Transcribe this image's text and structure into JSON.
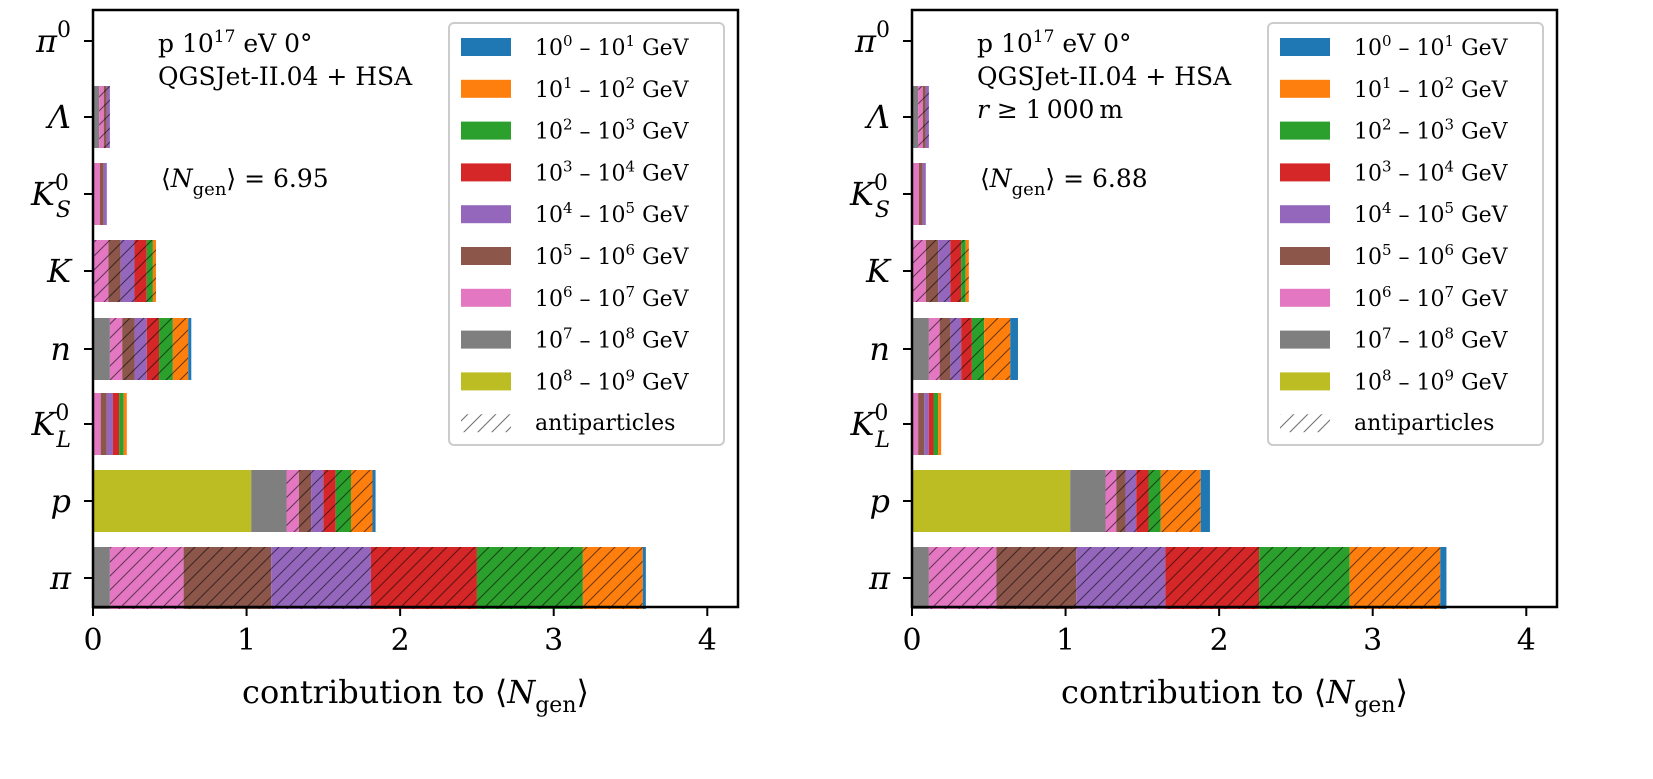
{
  "chart_data": [
    {
      "type": "bar",
      "orientation": "horizontal",
      "stacked": true,
      "xlabel": "contribution to ⟨Ngen⟩",
      "xlabel_parts": {
        "prefix": "contribution to ⟨",
        "sym": "N",
        "sub": "gen",
        "suffix": "⟩"
      },
      "xlim": [
        0,
        4.2
      ],
      "xticks": [
        0,
        1,
        2,
        3,
        4
      ],
      "grid": false,
      "legend": "top-right",
      "annotations": [
        {
          "kind": "plain",
          "text": "p 10^17 eV 0°",
          "parts": [
            "p 10",
            "17",
            " eV 0°"
          ]
        },
        {
          "kind": "text",
          "text": "QGSJet-II.04 + HSA"
        },
        {
          "kind": "mean",
          "text": "⟨Ngen⟩ = 6.95",
          "value": "6.95"
        }
      ],
      "categories": [
        "π0",
        "Λ",
        "K0S",
        "K",
        "n",
        "K0L",
        "p",
        "π"
      ],
      "bins": [
        {
          "label": "10^0 – 10^1 GeV",
          "exps": [
            "0",
            "1"
          ],
          "color": "#1f77b4"
        },
        {
          "label": "10^1 – 10^2 GeV",
          "exps": [
            "1",
            "2"
          ],
          "color": "#ff7f0e"
        },
        {
          "label": "10^2 – 10^3 GeV",
          "exps": [
            "2",
            "3"
          ],
          "color": "#2ca02c"
        },
        {
          "label": "10^3 – 10^4 GeV",
          "exps": [
            "3",
            "4"
          ],
          "color": "#d62728"
        },
        {
          "label": "10^4 – 10^5 GeV",
          "exps": [
            "4",
            "5"
          ],
          "color": "#9467bd"
        },
        {
          "label": "10^5 – 10^6 GeV",
          "exps": [
            "5",
            "6"
          ],
          "color": "#8c564b"
        },
        {
          "label": "10^6 – 10^7 GeV",
          "exps": [
            "6",
            "7"
          ],
          "color": "#e377c2"
        },
        {
          "label": "10^7 – 10^8 GeV",
          "exps": [
            "7",
            "8"
          ],
          "color": "#7f7f7f"
        },
        {
          "label": "10^8 – 10^9 GeV",
          "exps": [
            "8",
            "9"
          ],
          "color": "#bcbd22"
        }
      ],
      "antiparticle_label": "antiparticles",
      "bars": {
        "π0": [],
        "Λ": [
          {
            "bin": 7,
            "value": 0.04,
            "anti": false
          },
          {
            "bin": 6,
            "value": 0.03,
            "anti": true
          },
          {
            "bin": 5,
            "value": 0.02,
            "anti": true
          },
          {
            "bin": 4,
            "value": 0.02,
            "anti": true
          }
        ],
        "K0S": [
          {
            "bin": 6,
            "value": 0.045,
            "anti": false
          },
          {
            "bin": 5,
            "value": 0.025,
            "anti": false
          },
          {
            "bin": 4,
            "value": 0.02,
            "anti": false
          }
        ],
        "K": [
          {
            "bin": 6,
            "value": 0.1,
            "anti": true
          },
          {
            "bin": 5,
            "value": 0.08,
            "anti": true
          },
          {
            "bin": 4,
            "value": 0.09,
            "anti": true
          },
          {
            "bin": 3,
            "value": 0.08,
            "anti": true
          },
          {
            "bin": 2,
            "value": 0.04,
            "anti": true
          },
          {
            "bin": 1,
            "value": 0.02,
            "anti": true
          }
        ],
        "n": [
          {
            "bin": 7,
            "value": 0.11,
            "anti": false
          },
          {
            "bin": 6,
            "value": 0.08,
            "anti": true
          },
          {
            "bin": 5,
            "value": 0.08,
            "anti": true
          },
          {
            "bin": 4,
            "value": 0.08,
            "anti": true
          },
          {
            "bin": 3,
            "value": 0.08,
            "anti": true
          },
          {
            "bin": 2,
            "value": 0.09,
            "anti": true
          },
          {
            "bin": 1,
            "value": 0.1,
            "anti": true
          },
          {
            "bin": 0,
            "value": 0.02,
            "anti": false
          }
        ],
        "K0L": [
          {
            "bin": 6,
            "value": 0.05,
            "anti": false
          },
          {
            "bin": 5,
            "value": 0.04,
            "anti": false
          },
          {
            "bin": 4,
            "value": 0.04,
            "anti": false
          },
          {
            "bin": 3,
            "value": 0.04,
            "anti": false
          },
          {
            "bin": 2,
            "value": 0.03,
            "anti": false
          },
          {
            "bin": 1,
            "value": 0.02,
            "anti": false
          }
        ],
        "p": [
          {
            "bin": 8,
            "value": 1.03,
            "anti": false
          },
          {
            "bin": 7,
            "value": 0.23,
            "anti": false
          },
          {
            "bin": 6,
            "value": 0.08,
            "anti": true
          },
          {
            "bin": 5,
            "value": 0.08,
            "anti": true
          },
          {
            "bin": 4,
            "value": 0.08,
            "anti": true
          },
          {
            "bin": 3,
            "value": 0.08,
            "anti": true
          },
          {
            "bin": 2,
            "value": 0.1,
            "anti": true
          },
          {
            "bin": 1,
            "value": 0.14,
            "anti": true
          },
          {
            "bin": 0,
            "value": 0.02,
            "anti": false
          }
        ],
        "π": [
          {
            "bin": 7,
            "value": 0.11,
            "anti": false
          },
          {
            "bin": 6,
            "value": 0.48,
            "anti": true
          },
          {
            "bin": 5,
            "value": 0.57,
            "anti": true
          },
          {
            "bin": 4,
            "value": 0.65,
            "anti": true
          },
          {
            "bin": 3,
            "value": 0.69,
            "anti": true
          },
          {
            "bin": 2,
            "value": 0.69,
            "anti": true
          },
          {
            "bin": 1,
            "value": 0.39,
            "anti": true
          },
          {
            "bin": 0,
            "value": 0.02,
            "anti": false
          }
        ]
      }
    },
    {
      "type": "bar",
      "orientation": "horizontal",
      "stacked": true,
      "xlabel": "contribution to ⟨Ngen⟩",
      "xlabel_parts": {
        "prefix": "contribution to ⟨",
        "sym": "N",
        "sub": "gen",
        "suffix": "⟩"
      },
      "xlim": [
        0,
        4.2
      ],
      "xticks": [
        0,
        1,
        2,
        3,
        4
      ],
      "grid": false,
      "legend": "top-right",
      "annotations": [
        {
          "kind": "plain",
          "text": "p 10^17 eV 0°",
          "parts": [
            "p 10",
            "17",
            " eV 0°"
          ]
        },
        {
          "kind": "text",
          "text": "QGSJet-II.04 + HSA"
        },
        {
          "kind": "radius",
          "text": "r ≥ 1 000 m",
          "parts": [
            "r",
            " ≥ 1 000 m"
          ]
        },
        {
          "kind": "mean",
          "text": "⟨Ngen⟩ = 6.88",
          "value": "6.88"
        }
      ],
      "categories": [
        "π0",
        "Λ",
        "K0S",
        "K",
        "n",
        "K0L",
        "p",
        "π"
      ],
      "bins": [
        {
          "label": "10^0 – 10^1 GeV",
          "exps": [
            "0",
            "1"
          ],
          "color": "#1f77b4"
        },
        {
          "label": "10^1 – 10^2 GeV",
          "exps": [
            "1",
            "2"
          ],
          "color": "#ff7f0e"
        },
        {
          "label": "10^2 – 10^3 GeV",
          "exps": [
            "2",
            "3"
          ],
          "color": "#2ca02c"
        },
        {
          "label": "10^3 – 10^4 GeV",
          "exps": [
            "3",
            "4"
          ],
          "color": "#d62728"
        },
        {
          "label": "10^4 – 10^5 GeV",
          "exps": [
            "4",
            "5"
          ],
          "color": "#9467bd"
        },
        {
          "label": "10^5 – 10^6 GeV",
          "exps": [
            "5",
            "6"
          ],
          "color": "#8c564b"
        },
        {
          "label": "10^6 – 10^7 GeV",
          "exps": [
            "6",
            "7"
          ],
          "color": "#e377c2"
        },
        {
          "label": "10^7 – 10^8 GeV",
          "exps": [
            "7",
            "8"
          ],
          "color": "#7f7f7f"
        },
        {
          "label": "10^8 – 10^9 GeV",
          "exps": [
            "8",
            "9"
          ],
          "color": "#bcbd22"
        }
      ],
      "antiparticle_label": "antiparticles",
      "bars": {
        "π0": [],
        "Λ": [
          {
            "bin": 7,
            "value": 0.04,
            "anti": false
          },
          {
            "bin": 6,
            "value": 0.03,
            "anti": true
          },
          {
            "bin": 5,
            "value": 0.02,
            "anti": true
          },
          {
            "bin": 4,
            "value": 0.02,
            "anti": true
          }
        ],
        "K0S": [
          {
            "bin": 6,
            "value": 0.045,
            "anti": false
          },
          {
            "bin": 5,
            "value": 0.025,
            "anti": false
          },
          {
            "bin": 4,
            "value": 0.02,
            "anti": false
          }
        ],
        "K": [
          {
            "bin": 6,
            "value": 0.09,
            "anti": true
          },
          {
            "bin": 5,
            "value": 0.08,
            "anti": true
          },
          {
            "bin": 4,
            "value": 0.08,
            "anti": true
          },
          {
            "bin": 3,
            "value": 0.07,
            "anti": true
          },
          {
            "bin": 2,
            "value": 0.03,
            "anti": true
          },
          {
            "bin": 1,
            "value": 0.02,
            "anti": true
          }
        ],
        "n": [
          {
            "bin": 7,
            "value": 0.11,
            "anti": false
          },
          {
            "bin": 6,
            "value": 0.07,
            "anti": true
          },
          {
            "bin": 5,
            "value": 0.07,
            "anti": true
          },
          {
            "bin": 4,
            "value": 0.07,
            "anti": true
          },
          {
            "bin": 3,
            "value": 0.07,
            "anti": true
          },
          {
            "bin": 2,
            "value": 0.08,
            "anti": true
          },
          {
            "bin": 1,
            "value": 0.17,
            "anti": true
          },
          {
            "bin": 0,
            "value": 0.05,
            "anti": false
          }
        ],
        "K0L": [
          {
            "bin": 6,
            "value": 0.04,
            "anti": false
          },
          {
            "bin": 5,
            "value": 0.04,
            "anti": false
          },
          {
            "bin": 4,
            "value": 0.03,
            "anti": false
          },
          {
            "bin": 3,
            "value": 0.03,
            "anti": false
          },
          {
            "bin": 2,
            "value": 0.03,
            "anti": false
          },
          {
            "bin": 1,
            "value": 0.02,
            "anti": false
          }
        ],
        "p": [
          {
            "bin": 8,
            "value": 1.03,
            "anti": false
          },
          {
            "bin": 7,
            "value": 0.23,
            "anti": false
          },
          {
            "bin": 6,
            "value": 0.07,
            "anti": true
          },
          {
            "bin": 5,
            "value": 0.06,
            "anti": true
          },
          {
            "bin": 4,
            "value": 0.07,
            "anti": true
          },
          {
            "bin": 3,
            "value": 0.08,
            "anti": true
          },
          {
            "bin": 2,
            "value": 0.08,
            "anti": true
          },
          {
            "bin": 1,
            "value": 0.26,
            "anti": true
          },
          {
            "bin": 0,
            "value": 0.06,
            "anti": false
          }
        ],
        "π": [
          {
            "bin": 7,
            "value": 0.11,
            "anti": false
          },
          {
            "bin": 6,
            "value": 0.44,
            "anti": true
          },
          {
            "bin": 5,
            "value": 0.52,
            "anti": true
          },
          {
            "bin": 4,
            "value": 0.58,
            "anti": true
          },
          {
            "bin": 3,
            "value": 0.61,
            "anti": true
          },
          {
            "bin": 2,
            "value": 0.59,
            "anti": true
          },
          {
            "bin": 1,
            "value": 0.59,
            "anti": true
          },
          {
            "bin": 0,
            "value": 0.04,
            "anti": false
          }
        ]
      }
    }
  ]
}
